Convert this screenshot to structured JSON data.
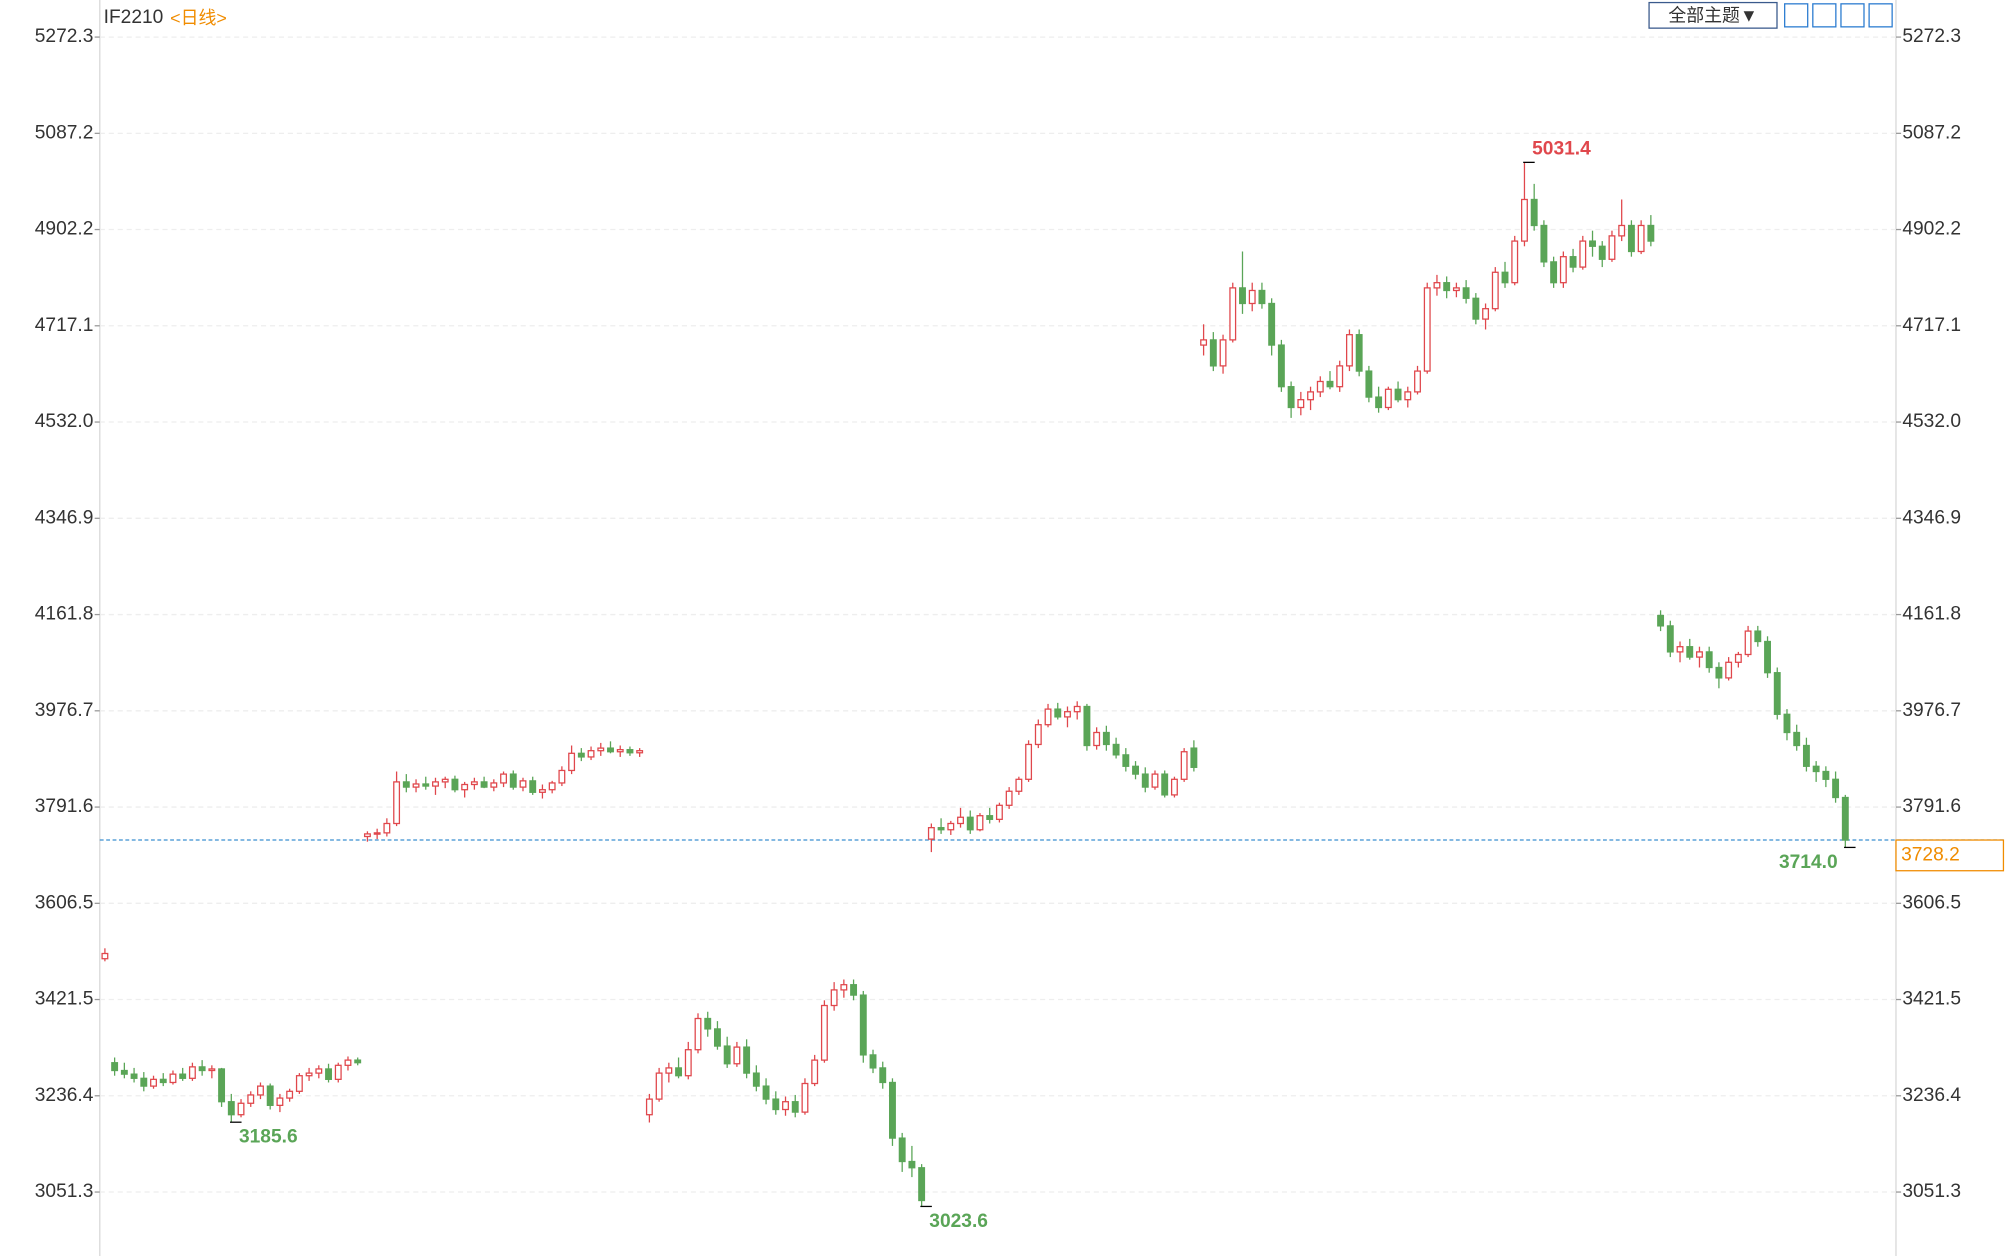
{
  "chart_data": {
    "type": "candlestick",
    "title": "IF2210",
    "subtitle": "<日线>",
    "toolbar": {
      "theme": "全部主题▼"
    },
    "up_color": "#e0474c",
    "down_color": "#5aa557",
    "ylim": [
      2928.3,
      5343.6
    ],
    "yticks": [
      5272.3,
      5087.2,
      4902.2,
      4717.1,
      {
        "value": 4532,
        "label": "4532.0"
      },
      4346.9,
      4161.8,
      3976.7,
      3791.6,
      3606.5,
      3421.5,
      3236.4,
      3051.3
    ],
    "grid": true,
    "last_price": 3728.2,
    "annotations": [
      {
        "value": 5031.4,
        "label": "5031.4"
      },
      {
        "value": 3185.6,
        "label": "3185.6"
      },
      {
        "value": 3023.6,
        "label": "3023.6"
      },
      {
        "value": 3714,
        "label": "3714.0"
      }
    ],
    "ohlc": [
      [
        3500,
        3520,
        3495,
        3510
      ],
      [
        3300,
        3310,
        3275,
        3285
      ],
      [
        3285,
        3300,
        3270,
        3278
      ],
      [
        3278,
        3290,
        3262,
        3270
      ],
      [
        3270,
        3282,
        3245,
        3255
      ],
      [
        3255,
        3275,
        3250,
        3268
      ],
      [
        3268,
        3280,
        3255,
        3262
      ],
      [
        3262,
        3285,
        3258,
        3278
      ],
      [
        3278,
        3290,
        3265,
        3270
      ],
      [
        3270,
        3300,
        3265,
        3292
      ],
      [
        3292,
        3305,
        3275,
        3285
      ],
      [
        3285,
        3295,
        3270,
        3288
      ],
      [
        3288,
        3290,
        3215,
        3225
      ],
      [
        3225,
        3240,
        3185.6,
        3200
      ],
      [
        3200,
        3230,
        3195,
        3222
      ],
      [
        3222,
        3245,
        3215,
        3238
      ],
      [
        3238,
        3262,
        3230,
        3255
      ],
      [
        3255,
        3260,
        3210,
        3218
      ],
      [
        3218,
        3240,
        3205,
        3232
      ],
      [
        3232,
        3250,
        3225,
        3245
      ],
      [
        3245,
        3280,
        3240,
        3275
      ],
      [
        3275,
        3290,
        3265,
        3280
      ],
      [
        3280,
        3295,
        3270,
        3288
      ],
      [
        3288,
        3298,
        3262,
        3268
      ],
      [
        3268,
        3300,
        3262,
        3295
      ],
      [
        3295,
        3312,
        3285,
        3305
      ],
      [
        3305,
        3310,
        3295,
        3300
      ],
      [
        3735,
        3745,
        3725,
        3740
      ],
      [
        3740,
        3750,
        3730,
        3742
      ],
      [
        3742,
        3770,
        3735,
        3760
      ],
      [
        3760,
        3860,
        3755,
        3840
      ],
      [
        3840,
        3855,
        3820,
        3830
      ],
      [
        3830,
        3845,
        3820,
        3836
      ],
      [
        3836,
        3850,
        3825,
        3832
      ],
      [
        3832,
        3848,
        3815,
        3840
      ],
      [
        3840,
        3850,
        3828,
        3845
      ],
      [
        3845,
        3852,
        3820,
        3825
      ],
      [
        3825,
        3840,
        3810,
        3835
      ],
      [
        3835,
        3848,
        3825,
        3840
      ],
      [
        3840,
        3850,
        3828,
        3830
      ],
      [
        3830,
        3845,
        3822,
        3838
      ],
      [
        3838,
        3860,
        3830,
        3855
      ],
      [
        3855,
        3862,
        3825,
        3830
      ],
      [
        3830,
        3848,
        3822,
        3842
      ],
      [
        3842,
        3850,
        3815,
        3820
      ],
      [
        3820,
        3835,
        3808,
        3825
      ],
      [
        3825,
        3842,
        3818,
        3838
      ],
      [
        3838,
        3870,
        3832,
        3862
      ],
      [
        3862,
        3910,
        3855,
        3895
      ],
      [
        3895,
        3905,
        3880,
        3888
      ],
      [
        3888,
        3908,
        3882,
        3900
      ],
      [
        3900,
        3915,
        3890,
        3905
      ],
      [
        3905,
        3918,
        3895,
        3898
      ],
      [
        3898,
        3910,
        3888,
        3902
      ],
      [
        3902,
        3908,
        3890,
        3896
      ],
      [
        3896,
        3905,
        3888,
        3900
      ],
      [
        3200,
        3240,
        3185,
        3230
      ],
      [
        3230,
        3290,
        3225,
        3280
      ],
      [
        3280,
        3300,
        3262,
        3290
      ],
      [
        3290,
        3310,
        3270,
        3275
      ],
      [
        3275,
        3340,
        3268,
        3325
      ],
      [
        3325,
        3395,
        3318,
        3385
      ],
      [
        3385,
        3398,
        3350,
        3365
      ],
      [
        3365,
        3380,
        3325,
        3332
      ],
      [
        3332,
        3350,
        3290,
        3298
      ],
      [
        3298,
        3340,
        3292,
        3330
      ],
      [
        3330,
        3345,
        3270,
        3280
      ],
      [
        3280,
        3295,
        3245,
        3255
      ],
      [
        3255,
        3270,
        3220,
        3230
      ],
      [
        3230,
        3245,
        3200,
        3210
      ],
      [
        3210,
        3235,
        3198,
        3225
      ],
      [
        3225,
        3238,
        3195,
        3205
      ],
      [
        3205,
        3270,
        3200,
        3260
      ],
      [
        3260,
        3315,
        3255,
        3305
      ],
      [
        3305,
        3420,
        3300,
        3410
      ],
      [
        3410,
        3455,
        3400,
        3440
      ],
      [
        3440,
        3460,
        3425,
        3450
      ],
      [
        3450,
        3460,
        3420,
        3430
      ],
      [
        3430,
        3438,
        3300,
        3315
      ],
      [
        3315,
        3325,
        3280,
        3290
      ],
      [
        3290,
        3302,
        3250,
        3262
      ],
      [
        3262,
        3270,
        3140,
        3155
      ],
      [
        3155,
        3165,
        3090,
        3110
      ],
      [
        3110,
        3140,
        3080,
        3098
      ],
      [
        3098,
        3105,
        3023.6,
        3035
      ],
      [
        3730,
        3760,
        3705,
        3752
      ],
      [
        3752,
        3770,
        3740,
        3748
      ],
      [
        3748,
        3765,
        3738,
        3760
      ],
      [
        3760,
        3790,
        3752,
        3772
      ],
      [
        3772,
        3785,
        3740,
        3748
      ],
      [
        3748,
        3780,
        3745,
        3775
      ],
      [
        3775,
        3790,
        3760,
        3768
      ],
      [
        3768,
        3800,
        3762,
        3795
      ],
      [
        3795,
        3830,
        3788,
        3822
      ],
      [
        3822,
        3850,
        3815,
        3845
      ],
      [
        3845,
        3920,
        3840,
        3912
      ],
      [
        3912,
        3960,
        3905,
        3950
      ],
      [
        3950,
        3990,
        3945,
        3980
      ],
      [
        3980,
        3992,
        3960,
        3965
      ],
      [
        3965,
        3985,
        3945,
        3975
      ],
      [
        3975,
        3995,
        3960,
        3985
      ],
      [
        3985,
        3990,
        3900,
        3910
      ],
      [
        3910,
        3945,
        3902,
        3935
      ],
      [
        3935,
        3948,
        3900,
        3912
      ],
      [
        3912,
        3925,
        3885,
        3892
      ],
      [
        3892,
        3905,
        3860,
        3870
      ],
      [
        3870,
        3880,
        3845,
        3855
      ],
      [
        3855,
        3868,
        3820,
        3830
      ],
      [
        3830,
        3862,
        3825,
        3855
      ],
      [
        3855,
        3862,
        3810,
        3815
      ],
      [
        3815,
        3850,
        3810,
        3845
      ],
      [
        3845,
        3905,
        3840,
        3898
      ],
      [
        3905,
        3920,
        3860,
        3868
      ],
      [
        4680,
        4720,
        4660,
        4690
      ],
      [
        4690,
        4705,
        4630,
        4640
      ],
      [
        4640,
        4700,
        4625,
        4690
      ],
      [
        4690,
        4800,
        4685,
        4790
      ],
      [
        4790,
        4860,
        4740,
        4760
      ],
      [
        4760,
        4800,
        4745,
        4785
      ],
      [
        4785,
        4800,
        4750,
        4760
      ],
      [
        4760,
        4770,
        4660,
        4680
      ],
      [
        4680,
        4690,
        4590,
        4600
      ],
      [
        4600,
        4610,
        4540,
        4560
      ],
      [
        4560,
        4590,
        4545,
        4575
      ],
      [
        4575,
        4600,
        4555,
        4590
      ],
      [
        4590,
        4620,
        4580,
        4610
      ],
      [
        4610,
        4630,
        4595,
        4600
      ],
      [
        4600,
        4650,
        4590,
        4640
      ],
      [
        4640,
        4710,
        4630,
        4700
      ],
      [
        4700,
        4710,
        4620,
        4630
      ],
      [
        4630,
        4640,
        4570,
        4580
      ],
      [
        4580,
        4600,
        4550,
        4560
      ],
      [
        4560,
        4600,
        4555,
        4595
      ],
      [
        4595,
        4610,
        4570,
        4575
      ],
      [
        4575,
        4600,
        4560,
        4590
      ],
      [
        4590,
        4640,
        4585,
        4630
      ],
      [
        4630,
        4800,
        4625,
        4790
      ],
      [
        4790,
        4815,
        4775,
        4800
      ],
      [
        4800,
        4812,
        4770,
        4785
      ],
      [
        4785,
        4800,
        4772,
        4790
      ],
      [
        4790,
        4805,
        4760,
        4770
      ],
      [
        4770,
        4780,
        4720,
        4730
      ],
      [
        4730,
        4760,
        4710,
        4750
      ],
      [
        4750,
        4830,
        4745,
        4820
      ],
      [
        4820,
        4840,
        4790,
        4800
      ],
      [
        4800,
        4890,
        4795,
        4880
      ],
      [
        4880,
        5031.4,
        4870,
        4960
      ],
      [
        4960,
        4990,
        4900,
        4910
      ],
      [
        4910,
        4920,
        4830,
        4840
      ],
      [
        4840,
        4850,
        4790,
        4800
      ],
      [
        4800,
        4860,
        4790,
        4850
      ],
      [
        4850,
        4865,
        4820,
        4830
      ],
      [
        4830,
        4890,
        4825,
        4880
      ],
      [
        4880,
        4900,
        4850,
        4870
      ],
      [
        4870,
        4880,
        4830,
        4845
      ],
      [
        4845,
        4900,
        4840,
        4890
      ],
      [
        4890,
        4960,
        4880,
        4910
      ],
      [
        4910,
        4920,
        4850,
        4860
      ],
      [
        4860,
        4920,
        4855,
        4910
      ],
      [
        4910,
        4930,
        4870,
        4880
      ],
      [
        4160,
        4170,
        4130,
        4140
      ],
      [
        4140,
        4150,
        4080,
        4090
      ],
      [
        4090,
        4110,
        4070,
        4100
      ],
      [
        4100,
        4115,
        4075,
        4080
      ],
      [
        4080,
        4100,
        4060,
        4090
      ],
      [
        4090,
        4100,
        4050,
        4060
      ],
      [
        4060,
        4070,
        4020,
        4040
      ],
      [
        4040,
        4080,
        4035,
        4070
      ],
      [
        4070,
        4090,
        4060,
        4085
      ],
      [
        4085,
        4140,
        4080,
        4130
      ],
      [
        4130,
        4140,
        4100,
        4110
      ],
      [
        4110,
        4120,
        4040,
        4050
      ],
      [
        4050,
        4060,
        3960,
        3970
      ],
      [
        3970,
        3980,
        3920,
        3935
      ],
      [
        3935,
        3950,
        3900,
        3910
      ],
      [
        3910,
        3925,
        3860,
        3870
      ],
      [
        3870,
        3880,
        3840,
        3860
      ],
      [
        3860,
        3870,
        3830,
        3845
      ],
      [
        3845,
        3860,
        3800,
        3810
      ],
      [
        3810,
        3815,
        3714,
        3728.2
      ]
    ]
  }
}
